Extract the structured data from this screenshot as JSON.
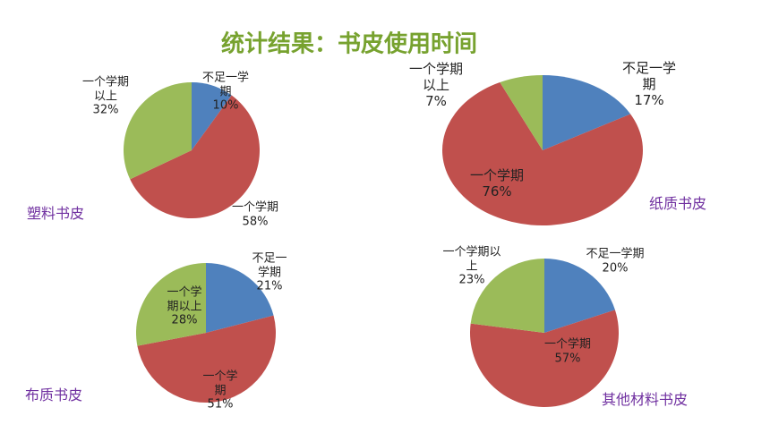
{
  "title": "统计结果：书皮使用时间",
  "chart_data": [
    {
      "type": "pie",
      "title": "塑料书皮",
      "categories": [
        "不足一学期",
        "一个学期",
        "一个学期以上"
      ],
      "values": [
        10,
        58,
        32
      ],
      "value_labels": [
        "10%",
        "58%",
        "32%"
      ],
      "colors": [
        "#4f81bd",
        "#c0504d",
        "#9bbb59"
      ]
    },
    {
      "type": "pie",
      "title": "纸质书皮",
      "categories": [
        "不足一学期",
        "一个学期",
        "一个学期以上"
      ],
      "values": [
        17,
        76,
        7
      ],
      "value_labels": [
        "17%",
        "76%",
        "7%"
      ],
      "colors": [
        "#4f81bd",
        "#c0504d",
        "#9bbb59"
      ]
    },
    {
      "type": "pie",
      "title": "布质书皮",
      "categories": [
        "不足一学期",
        "一个学期",
        "一个学期以上"
      ],
      "values": [
        21,
        51,
        28
      ],
      "value_labels": [
        "21%",
        "51%",
        "28%"
      ],
      "colors": [
        "#4f81bd",
        "#c0504d",
        "#9bbb59"
      ]
    },
    {
      "type": "pie",
      "title": "其他材料书皮",
      "categories": [
        "不足一学期",
        "一个学期",
        "一个学期以上"
      ],
      "values": [
        20,
        57,
        23
      ],
      "value_labels": [
        "20%",
        "57%",
        "23%"
      ],
      "colors": [
        "#4f81bd",
        "#c0504d",
        "#9bbb59"
      ]
    }
  ]
}
